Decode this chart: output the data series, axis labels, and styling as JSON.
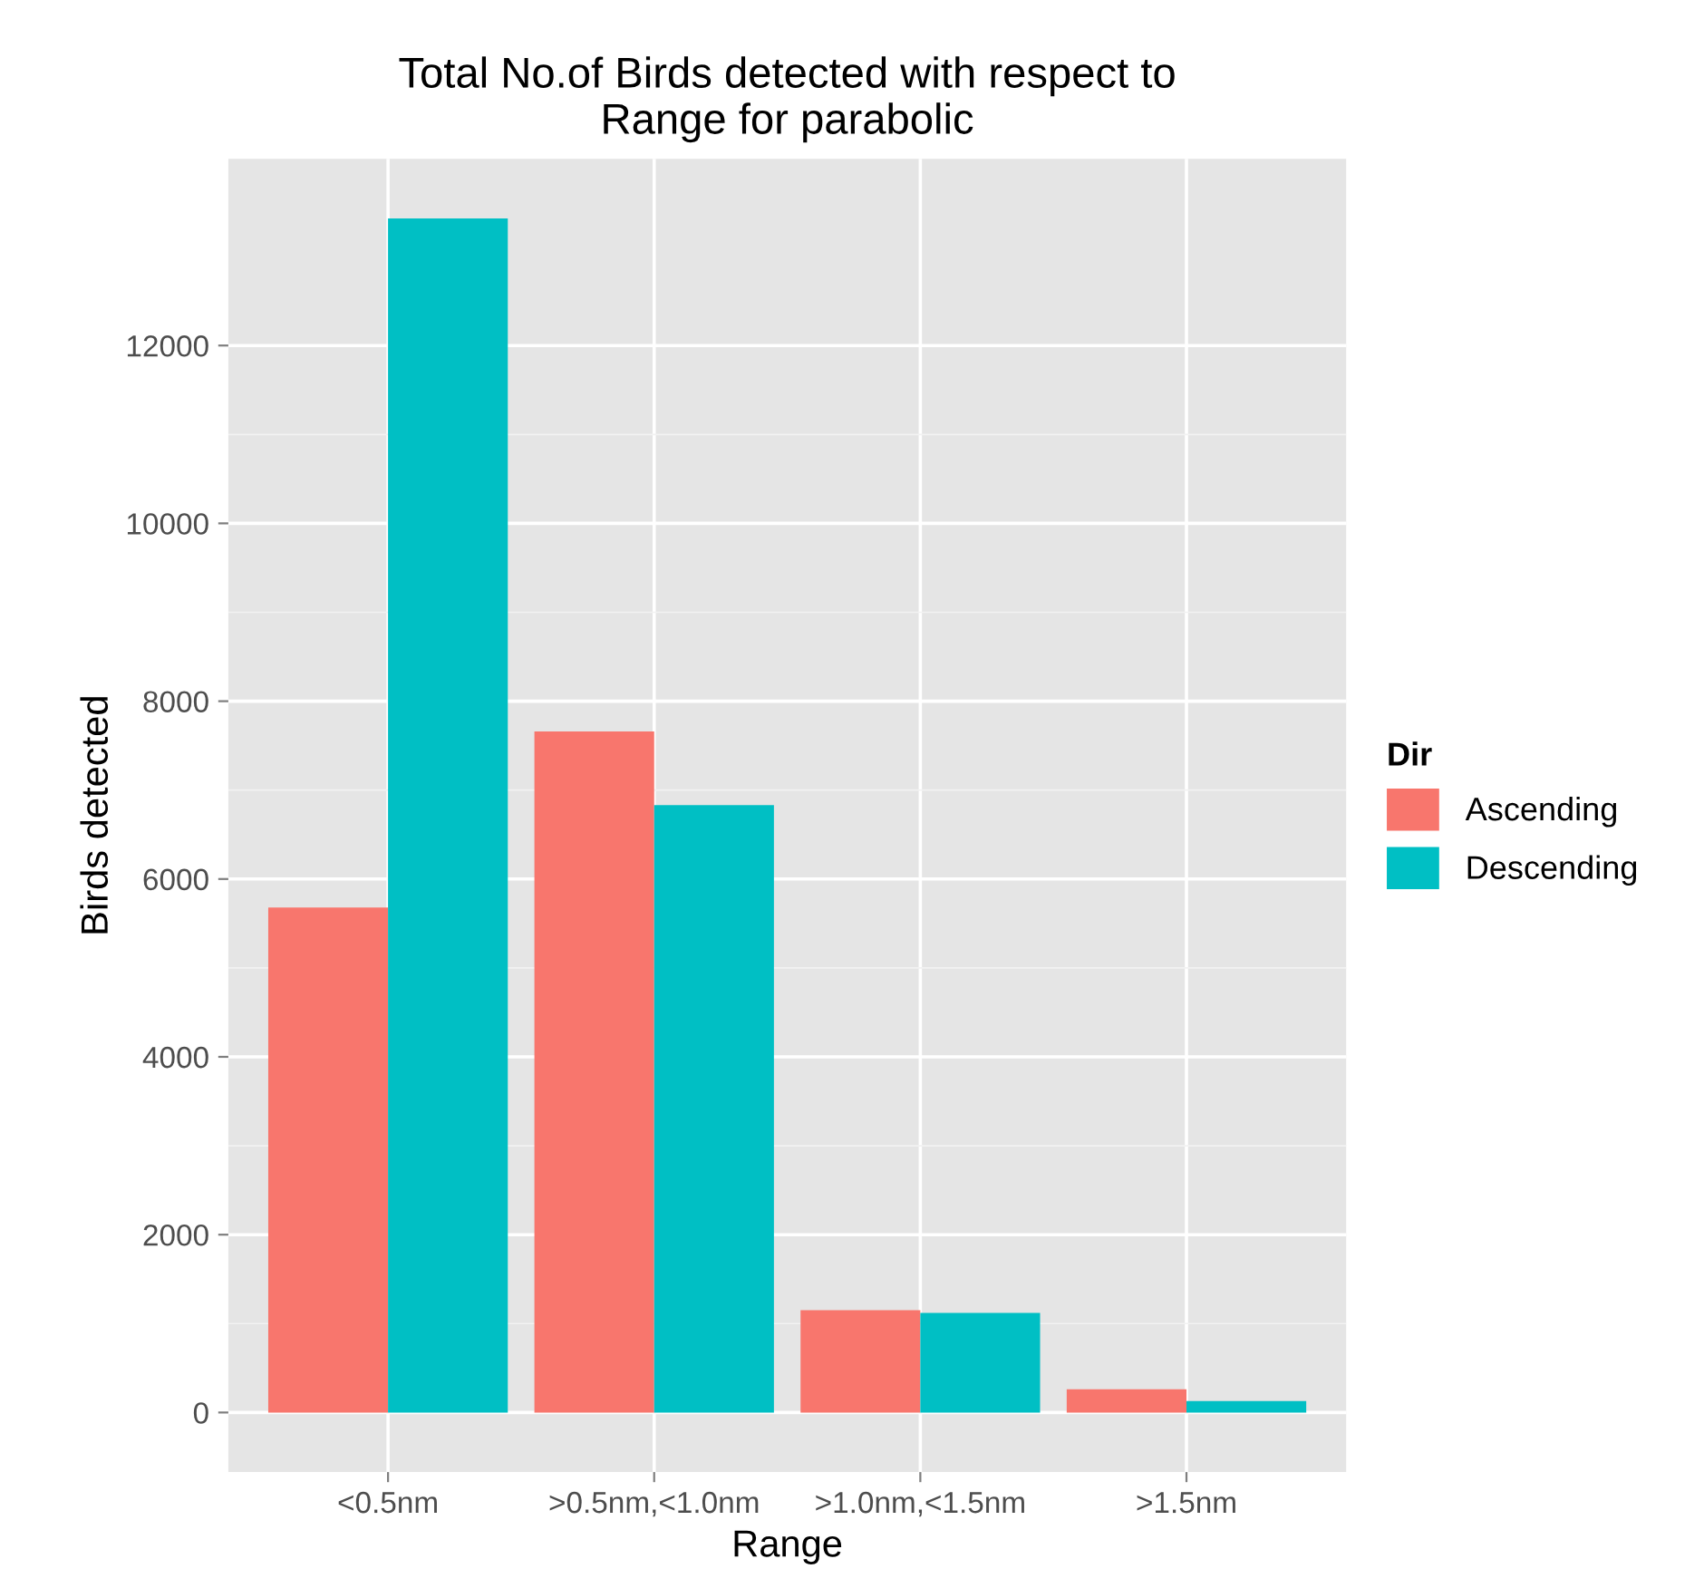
{
  "chart_data": {
    "type": "bar",
    "title": "Total No.of Birds detected with respect to\nRange for parabolic",
    "xlabel": "Range",
    "ylabel": "Birds detected",
    "legend_title": "Dir",
    "categories": [
      "<0.5nm",
      ">0.5nm,<1.0nm",
      ">1.0nm,<1.5nm",
      ">1.5nm"
    ],
    "series": [
      {
        "name": "Ascending",
        "color": "#f8766d",
        "values": [
          5680,
          7660,
          1150,
          260
        ]
      },
      {
        "name": "Descending",
        "color": "#00bfc4",
        "values": [
          13430,
          6830,
          1120,
          130
        ]
      }
    ],
    "ylim": [
      -670,
      14100
    ],
    "yticks": [
      0,
      2000,
      4000,
      6000,
      8000,
      10000,
      12000
    ],
    "grid": true,
    "legend": "right"
  }
}
